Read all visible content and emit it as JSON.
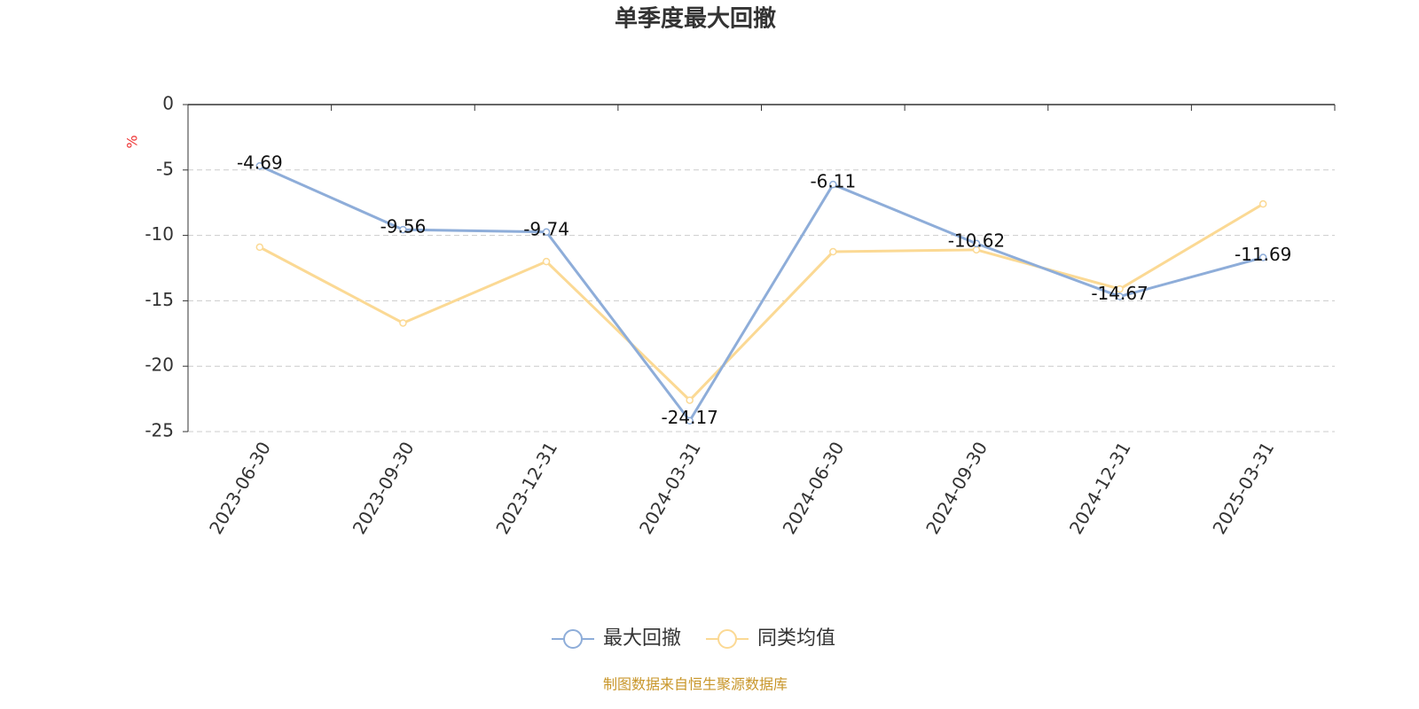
{
  "chart_data": {
    "type": "line",
    "title": "单季度最大回撤",
    "y_label": "%",
    "categories": [
      "2023-06-30",
      "2023-09-30",
      "2023-12-31",
      "2024-03-31",
      "2024-06-30",
      "2024-09-30",
      "2024-12-31",
      "2025-03-31"
    ],
    "series": [
      {
        "name": "最大回撤",
        "color": "#8eadd9",
        "values": [
          -4.69,
          -9.56,
          -9.74,
          -24.17,
          -6.11,
          -10.62,
          -14.67,
          -11.69
        ],
        "data_labels": true
      },
      {
        "name": "同类均值",
        "color": "#fbd994",
        "values": [
          -10.9,
          -16.7,
          -12.0,
          -22.6,
          -11.25,
          -11.1,
          -14.1,
          -7.6
        ]
      }
    ],
    "ylim": [
      -25,
      0
    ],
    "yticks": [
      0,
      -5,
      -10,
      -15,
      -20,
      -25
    ],
    "grid": true,
    "source": "制图数据来自恒生聚源数据库"
  }
}
